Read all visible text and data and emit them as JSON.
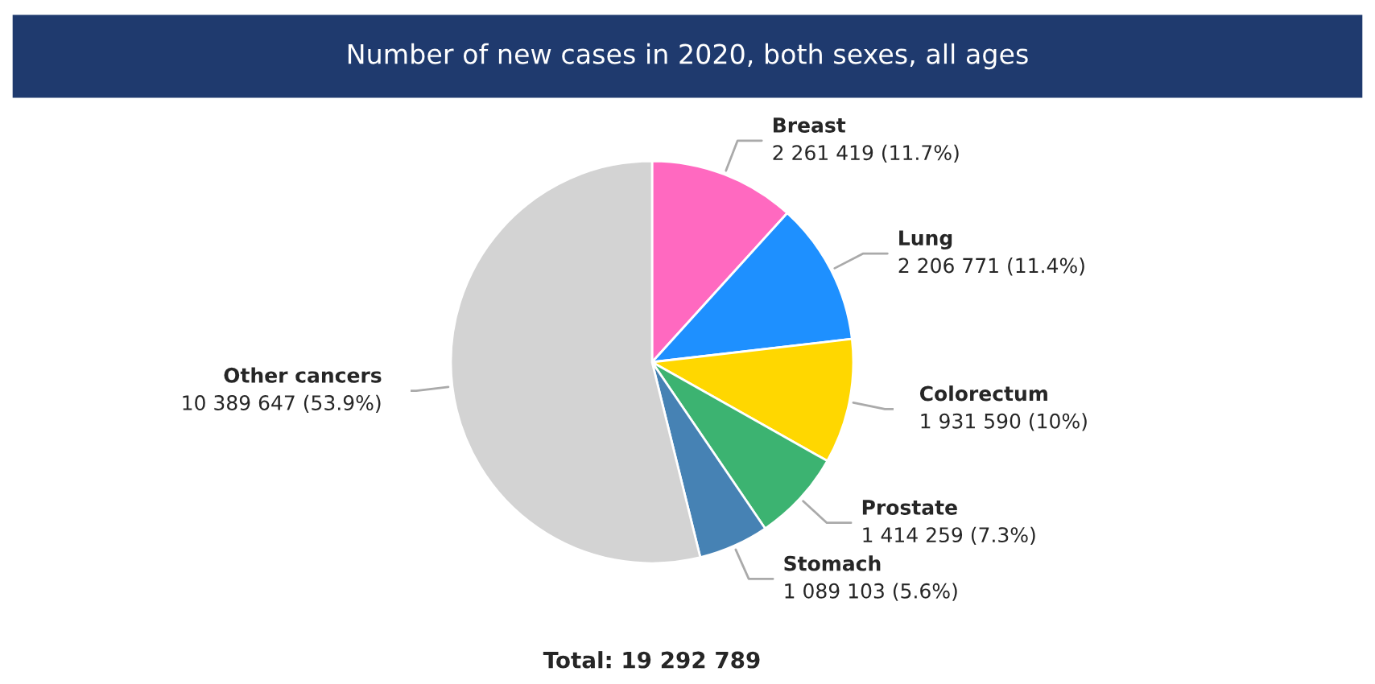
{
  "chart_data": {
    "type": "pie",
    "title": "Number of new cases in 2020, both sexes, all ages",
    "categories": [
      "Breast",
      "Lung",
      "Colorectum",
      "Prostate",
      "Stomach",
      "Other cancers"
    ],
    "values": [
      2261419,
      2206771,
      1931590,
      1414259,
      1089103,
      10389647
    ],
    "value_labels": [
      "2 261 419 (11.7%)",
      "2 206 771 (11.4%)",
      "1 931 590 (10%)",
      "1 414 259 (7.3%)",
      "1 089 103 (5.6%)",
      "10 389 647 (53.9%)"
    ],
    "colors": [
      "#ff69c0",
      "#1e90ff",
      "#ffd700",
      "#3cb371",
      "#4682b4",
      "#d3d3d3"
    ],
    "annotations": [
      "Total: 19 292 789"
    ],
    "legend": false
  }
}
